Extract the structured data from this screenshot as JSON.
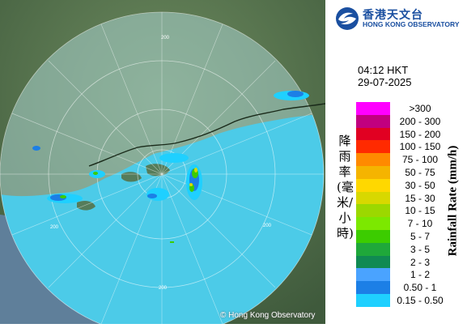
{
  "logo": {
    "name_zh": "香港天文台",
    "name_en": "HONG KONG OBSERVATORY",
    "icon": "hko-logo-icon"
  },
  "datetime": {
    "time": "04:12 HKT",
    "date": "29-07-2025"
  },
  "legend": {
    "title_zh": "降雨率(毫米/小時)",
    "title_en": "Rainfall Rate (mm/h)",
    "items": [
      {
        "label": ">300",
        "color": "#ff00ff"
      },
      {
        "label": "200 - 300",
        "color": "#c1007f"
      },
      {
        "label": "150 - 200",
        "color": "#e10022"
      },
      {
        "label": "100 - 150",
        "color": "#ff2a00"
      },
      {
        "label": "75 - 100",
        "color": "#ff8a00"
      },
      {
        "label": "50 - 75",
        "color": "#f5b400"
      },
      {
        "label": "30 - 50",
        "color": "#ffd800"
      },
      {
        "label": "15 - 30",
        "color": "#d8d800"
      },
      {
        "label": "10 - 15",
        "color": "#9cd800"
      },
      {
        "label": "7 - 10",
        "color": "#7ce800"
      },
      {
        "label": "5 - 7",
        "color": "#3ccc00"
      },
      {
        "label": "3 - 5",
        "color": "#1fa83a"
      },
      {
        "label": "2 - 3",
        "color": "#108a52"
      },
      {
        "label": "1 - 2",
        "color": "#4aa3ff"
      },
      {
        "label": "0.50 - 1",
        "color": "#1c7fe6"
      },
      {
        "label": "0.15 - 0.50",
        "color": "#1fd0ff"
      }
    ]
  },
  "map": {
    "range_labels": [
      "200",
      "200",
      "200",
      "200"
    ],
    "copyright": "© Hong Kong Observatory",
    "land_color": "#4f6b47",
    "sea_color": "#46c7e8"
  }
}
